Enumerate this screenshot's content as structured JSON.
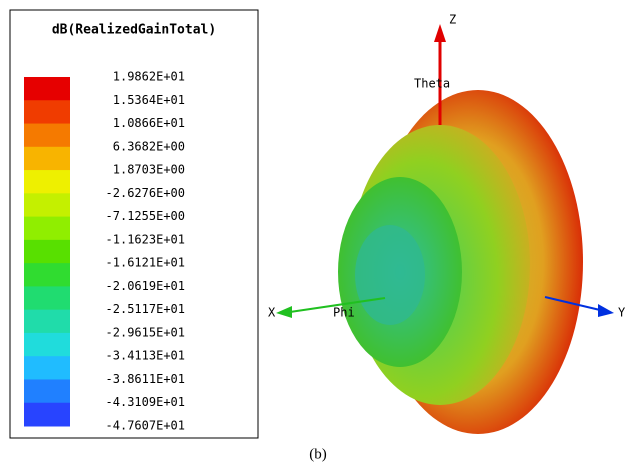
{
  "legend": {
    "title": "dB(RealizedGainTotal)",
    "levels": [
      "1.9862E+01",
      "1.5364E+01",
      "1.0866E+01",
      "6.3682E+00",
      "1.8703E+00",
      "-2.6276E+00",
      "-7.1255E+00",
      "-1.1623E+01",
      "-1.6121E+01",
      "-2.0619E+01",
      "-2.5117E+01",
      "-2.9615E+01",
      "-3.4113E+01",
      "-3.8611E+01",
      "-4.3109E+01",
      "-4.7607E+01"
    ],
    "colors": [
      "#e60000",
      "#f03c00",
      "#f57a00",
      "#f8b400",
      "#eef000",
      "#c4f000",
      "#90ee00",
      "#58e000",
      "#30dc30",
      "#20dc70",
      "#20dcaa",
      "#20dcdc",
      "#20bcff",
      "#2080ff",
      "#2844ff",
      "#0000f0"
    ]
  },
  "axes": {
    "z": "Z",
    "theta": "Theta",
    "x": "X",
    "phi": "Phi",
    "y": "Y"
  },
  "caption": "(b)"
}
